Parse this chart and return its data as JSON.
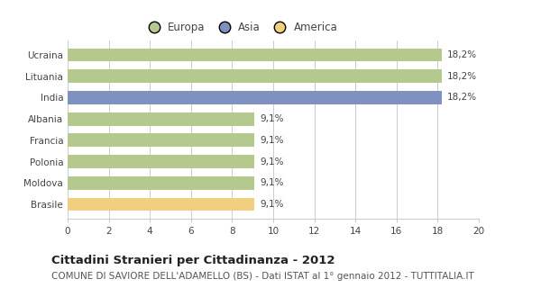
{
  "categories": [
    "Ucraina",
    "Lituania",
    "India",
    "Albania",
    "Francia",
    "Polonia",
    "Moldova",
    "Brasile"
  ],
  "values": [
    18.2,
    18.2,
    18.2,
    9.1,
    9.1,
    9.1,
    9.1,
    9.1
  ],
  "bar_colors": [
    "#b5c98e",
    "#b5c98e",
    "#8090c0",
    "#b5c98e",
    "#b5c98e",
    "#b5c98e",
    "#b5c98e",
    "#f0d080"
  ],
  "value_labels": [
    "18,2%",
    "18,2%",
    "18,2%",
    "9,1%",
    "9,1%",
    "9,1%",
    "9,1%",
    "9,1%"
  ],
  "legend_labels": [
    "Europa",
    "Asia",
    "America"
  ],
  "legend_colors": [
    "#b5c98e",
    "#8090c0",
    "#f0d080"
  ],
  "title": "Cittadini Stranieri per Cittadinanza - 2012",
  "subtitle": "COMUNE DI SAVIORE DELL'ADAMELLO (BS) - Dati ISTAT al 1° gennaio 2012 - TUTTITALIA.IT",
  "xlim": [
    0,
    20
  ],
  "xticks": [
    0,
    2,
    4,
    6,
    8,
    10,
    12,
    14,
    16,
    18,
    20
  ],
  "background_color": "#ffffff",
  "grid_color": "#cccccc",
  "bar_height": 0.62,
  "title_fontsize": 9.5,
  "subtitle_fontsize": 7.5,
  "label_fontsize": 7.5,
  "tick_fontsize": 7.5,
  "legend_fontsize": 8.5
}
